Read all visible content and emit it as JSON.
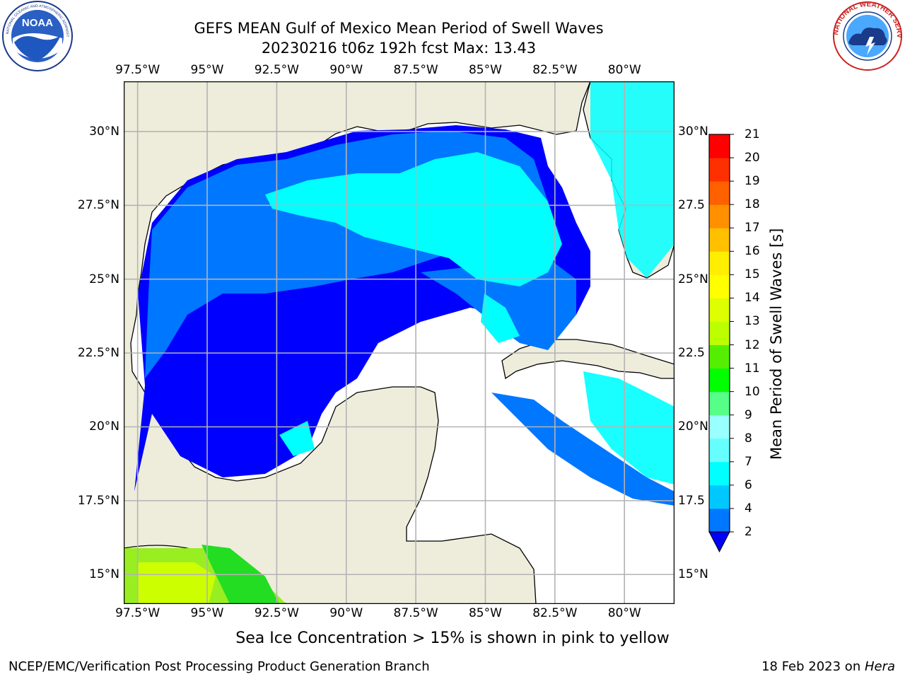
{
  "header": {
    "title_line1": "GEFS MEAN Gulf of Mexico Mean Period of Swell Waves",
    "title_line2": "20230216 t06z 192h fcst   Max: 13.43"
  },
  "logos": {
    "left": {
      "name": "noaa-logo",
      "text": "NOAA",
      "ring_text": "NATIONAL OCEANIC AND ATMOSPHERIC ADMINISTRATION · U.S. DEPARTMENT OF COMMERCE"
    },
    "right": {
      "name": "nws-logo",
      "ring_text": "NATIONAL WEATHER SERVICE"
    }
  },
  "map": {
    "lon_labels": [
      "97.5°W",
      "95°W",
      "92.5°W",
      "90°W",
      "87.5°W",
      "85°W",
      "82.5°W",
      "80°W"
    ],
    "lat_labels": [
      "30°N",
      "27.5°N",
      "25°N",
      "22.5°N",
      "20°N",
      "17.5°N",
      "15°N"
    ],
    "lat_labels_right": [
      "30°N",
      "27.5",
      "25°N",
      "22.5",
      "20°N",
      "17.5",
      "15°N"
    ],
    "extent": {
      "lon_min": -98,
      "lon_max": -78.2,
      "lat_min": 14.0,
      "lat_max": 31.7
    },
    "land_color": "#eeeddc",
    "grid_color": "#b3b3b3"
  },
  "colorbar": {
    "label": "Mean Period of Swell Waves [s]",
    "ticks": [
      "2",
      "4",
      "6",
      "7",
      "8",
      "9",
      "10",
      "11",
      "12",
      "13",
      "14",
      "15",
      "16",
      "17",
      "18",
      "19",
      "20",
      "21"
    ],
    "colors": [
      "#0000ff",
      "#0077ff",
      "#00c8ff",
      "#00ffff",
      "#66ffff",
      "#99ffff",
      "#55ff88",
      "#00ff00",
      "#55ee00",
      "#bbff00",
      "#ddff00",
      "#ffff00",
      "#ffee00",
      "#ffc000",
      "#ff9000",
      "#ff6000",
      "#ff3000",
      "#ff0000"
    ]
  },
  "note": "Sea Ice Concentration > 15% is shown in pink to yellow",
  "footer": {
    "left": "NCEP/EMC/Verification Post Processing Product Generation Branch",
    "right_prefix": "18 Feb 2023 on ",
    "right_machine": "Hera"
  }
}
